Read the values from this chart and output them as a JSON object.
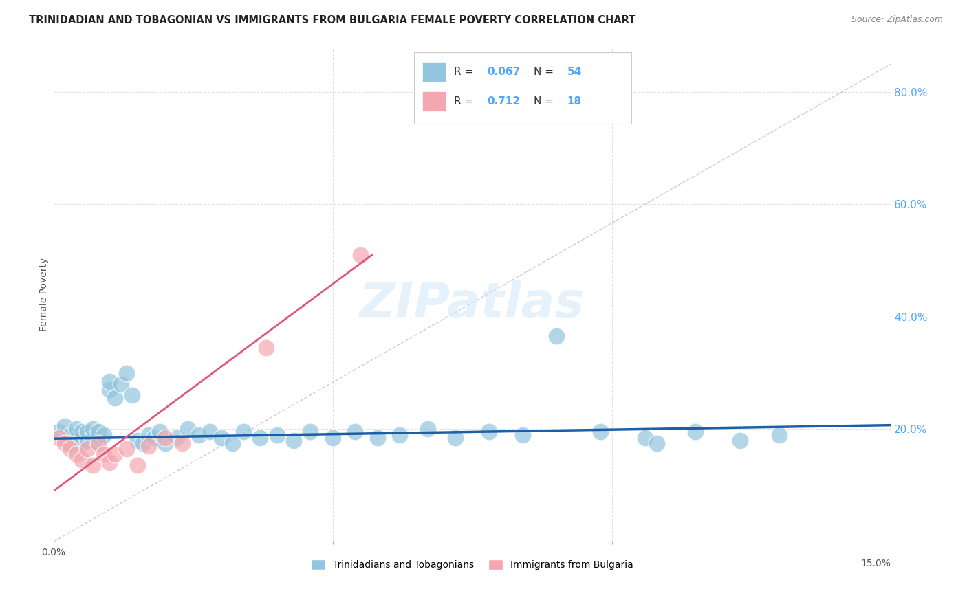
{
  "title": "TRINIDADIAN AND TOBAGONIAN VS IMMIGRANTS FROM BULGARIA FEMALE POVERTY CORRELATION CHART",
  "source": "Source: ZipAtlas.com",
  "ylabel": "Female Poverty",
  "yaxis_labels": [
    "20.0%",
    "40.0%",
    "60.0%",
    "80.0%"
  ],
  "yaxis_values": [
    0.2,
    0.4,
    0.6,
    0.8
  ],
  "xlim": [
    0.0,
    0.15
  ],
  "ylim": [
    0.0,
    0.88
  ],
  "legend1_label": "Trinidadians and Tobagonians",
  "legend2_label": "Immigrants from Bulgaria",
  "r1": 0.067,
  "n1": 54,
  "r2": 0.712,
  "n2": 18,
  "blue_color": "#92c5de",
  "pink_color": "#f4a7b0",
  "blue_line_color": "#1a5fa8",
  "pink_line_color": "#e05878",
  "ref_line_color": "#c0c0c0",
  "title_color": "#222222",
  "right_label_color": "#4da6ff",
  "watermark_color": "#d0e8f8",
  "background_color": "#ffffff",
  "grid_color": "#e0e0e0",
  "trinidadian_x": [
    0.001,
    0.002,
    0.003,
    0.003,
    0.004,
    0.004,
    0.005,
    0.005,
    0.005,
    0.006,
    0.006,
    0.007,
    0.007,
    0.008,
    0.008,
    0.009,
    0.01,
    0.01,
    0.011,
    0.012,
    0.013,
    0.014,
    0.015,
    0.016,
    0.017,
    0.018,
    0.019,
    0.02,
    0.022,
    0.024,
    0.026,
    0.028,
    0.03,
    0.032,
    0.034,
    0.037,
    0.04,
    0.043,
    0.046,
    0.05,
    0.054,
    0.058,
    0.062,
    0.067,
    0.072,
    0.078,
    0.084,
    0.09,
    0.098,
    0.106,
    0.108,
    0.115,
    0.123,
    0.13
  ],
  "trinidadian_y": [
    0.195,
    0.205,
    0.175,
    0.19,
    0.185,
    0.2,
    0.175,
    0.185,
    0.195,
    0.18,
    0.195,
    0.185,
    0.2,
    0.175,
    0.195,
    0.19,
    0.27,
    0.285,
    0.255,
    0.28,
    0.3,
    0.26,
    0.18,
    0.175,
    0.19,
    0.185,
    0.195,
    0.175,
    0.185,
    0.2,
    0.19,
    0.195,
    0.185,
    0.175,
    0.195,
    0.185,
    0.19,
    0.18,
    0.195,
    0.185,
    0.195,
    0.185,
    0.19,
    0.2,
    0.185,
    0.195,
    0.19,
    0.365,
    0.195,
    0.185,
    0.175,
    0.195,
    0.18,
    0.19
  ],
  "bulgaria_x": [
    0.001,
    0.002,
    0.003,
    0.004,
    0.005,
    0.006,
    0.007,
    0.008,
    0.009,
    0.01,
    0.011,
    0.013,
    0.015,
    0.017,
    0.02,
    0.023,
    0.038,
    0.055
  ],
  "bulgaria_y": [
    0.185,
    0.175,
    0.165,
    0.155,
    0.145,
    0.165,
    0.135,
    0.175,
    0.155,
    0.14,
    0.155,
    0.165,
    0.135,
    0.17,
    0.185,
    0.175,
    0.345,
    0.51
  ],
  "blue_regline_x": [
    0.0,
    0.15
  ],
  "blue_regline_y": [
    0.183,
    0.207
  ],
  "pink_regline_x": [
    0.0,
    0.057
  ],
  "pink_regline_y": [
    0.09,
    0.51
  ]
}
